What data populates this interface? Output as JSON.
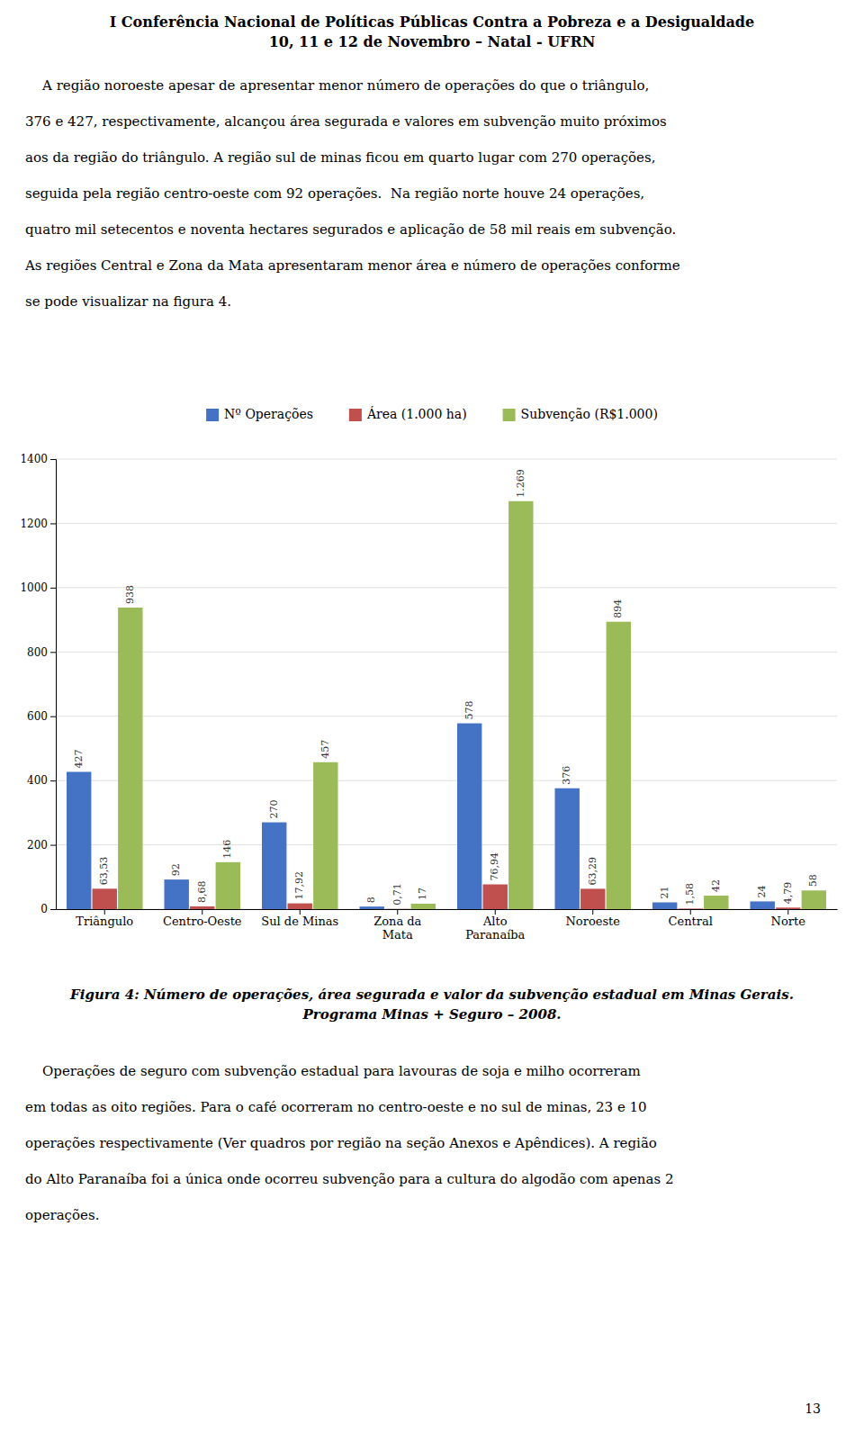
{
  "header": [
    "I Conferência Nacional de Políticas Públicas Contra a Pobreza e a Desigualdade",
    "10, 11 e 12 de Novembro – Natal - UFRN"
  ],
  "body_text_1": [
    "    A região noroeste apesar de apresentar menor número de operações do que o triângulo,",
    "376 e 427, respectivamente, alcançou área segurada e valores em subvenção muito próximos",
    "aos da região do triângulo. A região sul de minas ficou em quarto lugar com 270 operações,",
    "seguida pela região centro-oeste com 92 operações.  Na região norte houve 24 operações,",
    "quatro mil setecentos e noventa hectares segurados e aplicação de 58 mil reais em subvenção.",
    "As regiões Central e Zona da Mata apresentaram menor área e número de operações conforme",
    "se pode visualizar na figura 4."
  ],
  "body_text_2": [
    "    Operações de seguro com subvenção estadual para lavouras de soja e milho ocorreram",
    "em todas as oito regiões. Para o café ocorreram no centro-oeste e no sul de minas, 23 e 10",
    "operações respectivamente (Ver quadros por região na seção Anexos e Apêndices). A região",
    "do Alto Paranaíba foi a única onde ocorreu subvenção para a cultura do algodão com apenas 2",
    "operações."
  ],
  "page_number": "13",
  "chart_data": {
    "type": "bar",
    "title": "Figura 4: Número de operações, área segurada e valor da subvenção estadual em Minas Gerais.",
    "subtitle": "Programa Minas + Seguro – 2008.",
    "categories": [
      "Triângulo",
      "Centro-Oeste",
      "Sul de Minas",
      "Zona da\nMata",
      "Alto\nParanaíba",
      "Noroeste",
      "Central",
      "Norte"
    ],
    "series": [
      {
        "name": "Nº Operações",
        "color": "#4472C4",
        "values": [
          427,
          92,
          270,
          8,
          578,
          376,
          21,
          24
        ]
      },
      {
        "name": "Área (1.000 ha)",
        "color": "#C0504D",
        "values": [
          63.53,
          8.68,
          17.92,
          0.71,
          76.94,
          63.29,
          1.58,
          4.79
        ],
        "value_labels": [
          "63,53",
          "8,68",
          "17,92",
          "0,71",
          "76,94",
          "63,29",
          "1,58",
          "4,79"
        ]
      },
      {
        "name": "Subvenção (R$1.000)",
        "color": "#9BBB59",
        "values": [
          938,
          146,
          457,
          17,
          1269,
          894,
          42,
          58
        ],
        "value_labels": [
          "938",
          "146",
          "457",
          "17",
          "1.269",
          "894",
          "42",
          "58"
        ]
      }
    ],
    "ylim": [
      0,
      1400
    ],
    "yticks": [
      0,
      200,
      400,
      600,
      800,
      1000,
      1200,
      1400
    ],
    "grid": true,
    "legend": "top",
    "data_labels": true
  }
}
